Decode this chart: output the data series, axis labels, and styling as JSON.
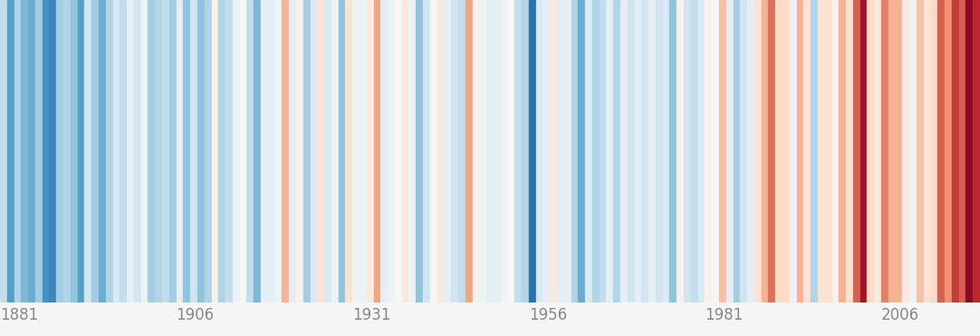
{
  "years": [
    1881,
    1882,
    1883,
    1884,
    1885,
    1886,
    1887,
    1888,
    1889,
    1890,
    1891,
    1892,
    1893,
    1894,
    1895,
    1896,
    1897,
    1898,
    1899,
    1900,
    1901,
    1902,
    1903,
    1904,
    1905,
    1906,
    1907,
    1908,
    1909,
    1910,
    1911,
    1912,
    1913,
    1914,
    1915,
    1916,
    1917,
    1918,
    1919,
    1920,
    1921,
    1922,
    1923,
    1924,
    1925,
    1926,
    1927,
    1928,
    1929,
    1930,
    1931,
    1932,
    1933,
    1934,
    1935,
    1936,
    1937,
    1938,
    1939,
    1940,
    1941,
    1942,
    1943,
    1944,
    1945,
    1946,
    1947,
    1948,
    1949,
    1950,
    1951,
    1952,
    1953,
    1954,
    1955,
    1956,
    1957,
    1958,
    1959,
    1960,
    1961,
    1962,
    1963,
    1964,
    1965,
    1966,
    1967,
    1968,
    1969,
    1970,
    1971,
    1972,
    1973,
    1974,
    1975,
    1976,
    1977,
    1978,
    1979,
    1980,
    1981,
    1982,
    1983,
    1984,
    1985,
    1986,
    1987,
    1988,
    1989,
    1990,
    1991,
    1992,
    1993,
    1994,
    1995,
    1996,
    1997,
    1998,
    1999,
    2000,
    2001,
    2002,
    2003,
    2004,
    2005,
    2006,
    2007,
    2008,
    2009,
    2010,
    2011,
    2012,
    2013,
    2014,
    2015,
    2016,
    2017,
    2018,
    2019
  ],
  "anomalies": [
    -0.5,
    -1.1,
    -0.6,
    -0.9,
    -1.0,
    -0.7,
    -1.2,
    -1.3,
    -0.7,
    -0.6,
    -0.8,
    -1.1,
    -0.4,
    -0.7,
    -1.0,
    -0.6,
    -0.3,
    -0.5,
    -0.2,
    -0.4,
    -0.1,
    -0.7,
    -0.6,
    -0.5,
    -0.7,
    -0.2,
    -0.8,
    -0.4,
    -0.8,
    -0.6,
    0.1,
    -0.6,
    -0.5,
    -0.1,
    0.0,
    -0.5,
    -0.9,
    -0.2,
    -0.2,
    -0.1,
    0.7,
    -0.2,
    0.1,
    -0.7,
    -0.3,
    0.3,
    -0.3,
    -0.1,
    -0.8,
    0.3,
    -0.1,
    -0.1,
    0.2,
    0.8,
    -0.2,
    -0.1,
    0.0,
    0.2,
    -0.1,
    -0.8,
    -0.4,
    0.0,
    0.2,
    -0.2,
    -0.4,
    -0.5,
    0.8,
    0.1,
    -0.1,
    -0.2,
    -0.2,
    -0.1,
    0.0,
    -0.5,
    -0.6,
    -1.5,
    -0.3,
    -0.2,
    0.2,
    -0.2,
    -0.2,
    -0.6,
    -1.0,
    -0.3,
    -0.6,
    -0.5,
    -0.2,
    -0.6,
    -0.2,
    -0.4,
    -0.2,
    -0.4,
    -0.2,
    -0.4,
    -0.3,
    -0.8,
    0.1,
    -0.4,
    -0.5,
    -0.3,
    0.1,
    0.0,
    0.6,
    -0.2,
    -0.7,
    -0.4,
    -0.2,
    0.3,
    0.7,
    1.1,
    0.4,
    0.4,
    -0.1,
    0.7,
    0.3,
    -0.6,
    0.3,
    0.3,
    0.1,
    0.7,
    0.3,
    1.2,
    1.7,
    0.4,
    0.2,
    1.0,
    0.7,
    0.7,
    0.2,
    -0.1,
    0.6,
    0.3,
    0.4,
    1.2,
    0.9,
    1.4,
    1.2,
    1.8,
    1.5
  ],
  "year_labels": [
    1881,
    1906,
    1931,
    1956,
    1981,
    2006
  ],
  "background_color": "#f5f5f5",
  "label_color": "#888888",
  "label_fontsize": 12,
  "vmin": -2.0,
  "vmax": 2.0
}
